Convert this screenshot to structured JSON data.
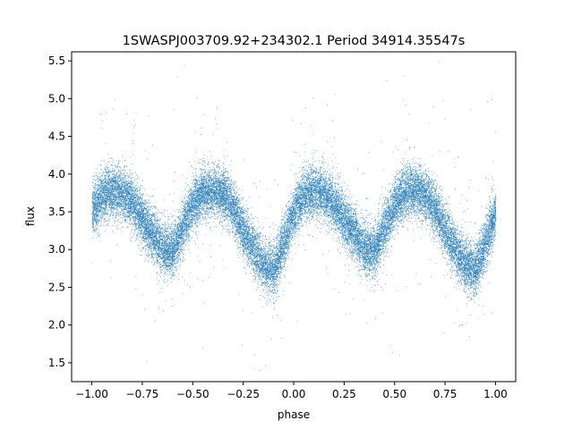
{
  "chart_data": {
    "type": "scatter",
    "title": "1SWASPJ003709.92+234302.1 Period 34914.35547s",
    "xlabel": "phase",
    "ylabel": "flux",
    "xlim": [
      -1.1,
      1.1
    ],
    "ylim": [
      1.25,
      5.62
    ],
    "xticks": [
      -1.0,
      -0.75,
      -0.5,
      -0.25,
      0.0,
      0.25,
      0.5,
      0.75,
      1.0
    ],
    "xtick_labels": [
      "−1.00",
      "−0.75",
      "−0.50",
      "−0.25",
      "0.00",
      "0.25",
      "0.50",
      "0.75",
      "1.00"
    ],
    "yticks": [
      1.5,
      2.0,
      2.5,
      3.0,
      3.5,
      4.0,
      4.5,
      5.0,
      5.5
    ],
    "ytick_labels": [
      "1.5",
      "2.0",
      "2.5",
      "3.0",
      "3.5",
      "4.0",
      "4.5",
      "5.0",
      "5.5"
    ],
    "grid": false,
    "marker_color": "#1f77b4",
    "series": [
      {
        "x": [
          -1.0,
          -0.95,
          -0.9,
          -0.85,
          -0.8,
          -0.75,
          -0.7,
          -0.65,
          -0.6,
          -0.55,
          -0.5,
          -0.45,
          -0.4,
          -0.35,
          -0.3,
          -0.25,
          -0.2,
          -0.15,
          -0.1,
          -0.05,
          0.0,
          0.05,
          0.1,
          0.15,
          0.2,
          0.25,
          0.3,
          0.35,
          0.4,
          0.45,
          0.5,
          0.55,
          0.6,
          0.65,
          0.7,
          0.75,
          0.8,
          0.85,
          0.9,
          0.95,
          1.0
        ],
        "y": [
          3.5,
          3.72,
          3.78,
          3.76,
          3.62,
          3.4,
          3.2,
          3.0,
          2.98,
          3.3,
          3.6,
          3.76,
          3.78,
          3.74,
          3.55,
          3.25,
          3.0,
          2.8,
          2.72,
          3.1,
          3.5,
          3.72,
          3.8,
          3.74,
          3.6,
          3.4,
          3.2,
          3.0,
          2.98,
          3.3,
          3.6,
          3.76,
          3.8,
          3.74,
          3.55,
          3.25,
          3.0,
          2.8,
          2.72,
          3.1,
          3.5
        ],
        "scatter_sd": 0.17,
        "points_per_unit_phase": 14000
      }
    ]
  }
}
